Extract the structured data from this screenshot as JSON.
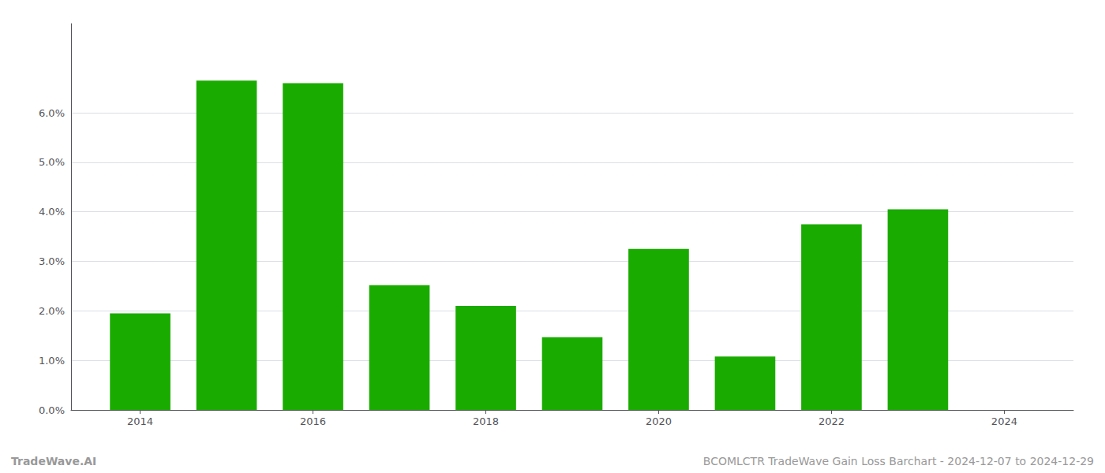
{
  "chart_data": {
    "type": "bar",
    "x": [
      2014,
      2015,
      2016,
      2017,
      2018,
      2019,
      2020,
      2021,
      2022,
      2023,
      2024
    ],
    "values": [
      0.0195,
      0.0665,
      0.066,
      0.0252,
      0.021,
      0.0147,
      0.0325,
      0.0108,
      0.0375,
      0.0405,
      0.0
    ],
    "color": "#1aab00",
    "xlim": [
      2013.2,
      2024.8
    ],
    "xticks": [
      2014,
      2016,
      2018,
      2020,
      2022,
      2024
    ],
    "ylim": [
      0,
      0.078
    ],
    "yticks": [
      {
        "value": 0.0,
        "label": "0.0%"
      },
      {
        "value": 0.01,
        "label": "1.0%"
      },
      {
        "value": 0.02,
        "label": "2.0%"
      },
      {
        "value": 0.03,
        "label": "3.0%"
      },
      {
        "value": 0.04,
        "label": "4.0%"
      },
      {
        "value": 0.05,
        "label": "5.0%"
      },
      {
        "value": 0.06,
        "label": "6.0%"
      }
    ],
    "grid": true,
    "annotations": [
      "TradeWave.AI",
      "BCOMLCTR TradeWave Gain Loss Barchart - 2024-12-07 to 2024-12-29"
    ]
  }
}
